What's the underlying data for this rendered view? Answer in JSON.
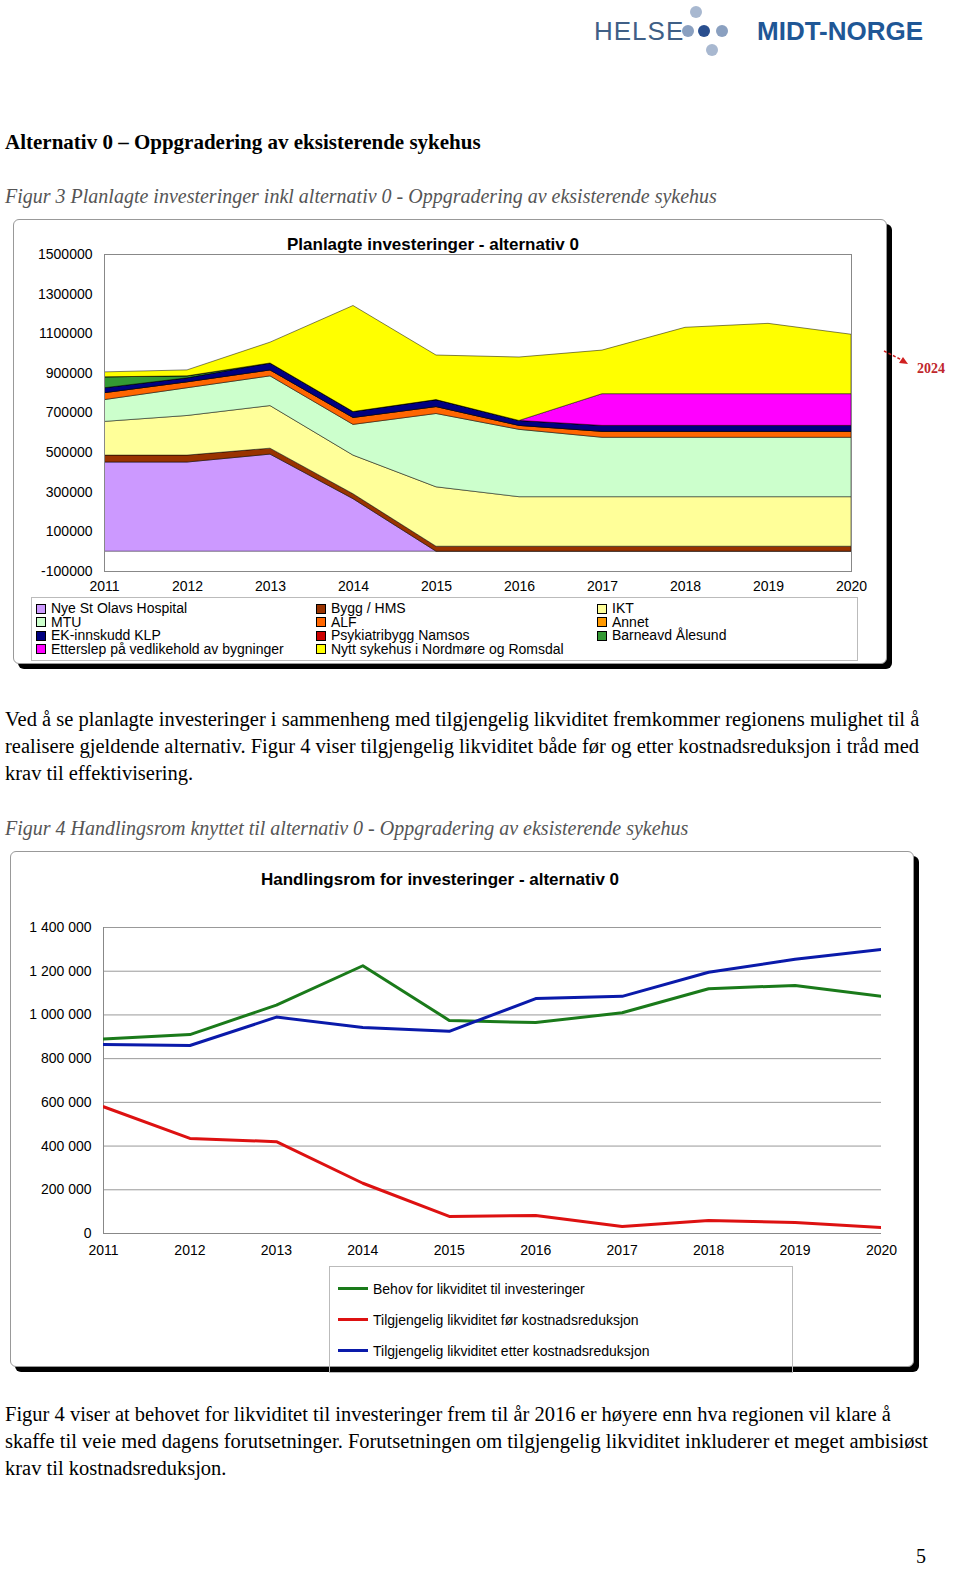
{
  "header": {
    "logo": [
      "HELSE",
      "MIDT-NORGE"
    ]
  },
  "heading": "Alternativ 0 – Oppgradering av eksisterende sykehus",
  "captions": [
    "Figur 3 Planlagte investeringer inkl alternativ 0 - Oppgradering av eksisterende sykehus",
    "Figur 4 Handlingsrom knyttet til alternativ 0 - Oppgradering av eksisterende sykehus"
  ],
  "paragraphs": [
    "Ved å se planlagte investeringer i sammenheng med tilgjengelig likviditet fremkommer regionens mulighet til å realisere gjeldende alternativ. Figur 4 viser tilgjengelig likviditet både før og etter kostnadsreduksjon i tråd med krav til effektivisering.",
    "Figur 4 viser at behovet for likviditet til investeringer frem til år 2016 er høyere enn hva regionen vil klare å skaffe til veie med dagens forutsetninger. Forutsetningen om tilgjengelig likviditet inkluderer et meget ambisiøst krav til kostnadsreduksjon."
  ],
  "page_number": 5,
  "chart_data": [
    {
      "type": "area",
      "title": "Planlagte investeringer - alternativ 0",
      "stacked": true,
      "grid": false,
      "legend": "bottom",
      "annotation": "2024",
      "x": [
        2011,
        2012,
        2013,
        2014,
        2015,
        2016,
        2017,
        2018,
        2019,
        2020
      ],
      "xlim": [
        2011,
        2020
      ],
      "xticks": [
        2011,
        2012,
        2013,
        2014,
        2015,
        2016,
        2017,
        2018,
        2019,
        2020
      ],
      "ylim": [
        -100000,
        1500000
      ],
      "yticks": [
        -100000,
        100000,
        300000,
        500000,
        700000,
        900000,
        1100000,
        1300000,
        1500000
      ],
      "series": [
        {
          "name": "Nye St Olavs Hospital",
          "color": "#cc99ff",
          "values": [
            450000,
            450000,
            490000,
            265000,
            0,
            0,
            0,
            0,
            0,
            0
          ]
        },
        {
          "name": "Bygg / HMS",
          "color": "#993300",
          "values": [
            35000,
            35000,
            30000,
            25000,
            25000,
            25000,
            25000,
            25000,
            25000,
            25000
          ]
        },
        {
          "name": "IKT",
          "color": "#ffff99",
          "values": [
            170000,
            200000,
            215000,
            195000,
            300000,
            250000,
            250000,
            250000,
            250000,
            250000
          ]
        },
        {
          "name": "MTU",
          "color": "#ccffcc",
          "values": [
            110000,
            140000,
            150000,
            155000,
            370000,
            340000,
            300000,
            300000,
            300000,
            300000
          ]
        },
        {
          "name": "ALF",
          "color": "#ff6600",
          "values": [
            35000,
            30000,
            30000,
            35000,
            35000,
            20000,
            30000,
            30000,
            30000,
            30000
          ]
        },
        {
          "name": "Annet",
          "color": "#ff9900",
          "values": [
            0,
            0,
            0,
            0,
            0,
            0,
            0,
            0,
            0,
            0
          ]
        },
        {
          "name": "EK-innskudd KLP",
          "color": "#000080",
          "values": [
            25000,
            20000,
            35000,
            30000,
            35000,
            25000,
            30000,
            30000,
            30000,
            30000
          ]
        },
        {
          "name": "Psykiatribygg Namsos",
          "color": "#cc0000",
          "values": [
            0,
            0,
            0,
            0,
            0,
            0,
            0,
            0,
            0,
            0
          ]
        },
        {
          "name": "Barneavd Ålesund",
          "color": "#339933",
          "values": [
            55000,
            10000,
            0,
            0,
            0,
            0,
            0,
            0,
            0,
            0
          ]
        },
        {
          "name": "Etterslep på vedlikehold av bygninger",
          "color": "#ff00ff",
          "values": [
            0,
            0,
            0,
            0,
            0,
            0,
            160000,
            160000,
            160000,
            160000
          ]
        },
        {
          "name": "Nytt sykehus i Nordmøre og Romsdal",
          "color": "#ffff00",
          "values": [
            25000,
            30000,
            105000,
            535000,
            225000,
            320000,
            220000,
            335000,
            355000,
            300000
          ]
        }
      ]
    },
    {
      "type": "line",
      "title": "Handlingsrom for investeringer - alternativ 0",
      "grid": true,
      "legend": "bottom",
      "x": [
        2011,
        2012,
        2013,
        2014,
        2015,
        2016,
        2017,
        2018,
        2019,
        2020
      ],
      "xlim": [
        2011,
        2020
      ],
      "xticks": [
        2011,
        2012,
        2013,
        2014,
        2015,
        2016,
        2017,
        2018,
        2019,
        2020
      ],
      "ylim": [
        0,
        1400000
      ],
      "yticks": [
        0,
        {
          "value": 200000,
          "label": "200 000"
        },
        {
          "value": 400000,
          "label": "400 000"
        },
        {
          "value": 600000,
          "label": "600 000"
        },
        {
          "value": 800000,
          "label": "800 000"
        },
        {
          "value": 1000000,
          "label": "1 000 000"
        },
        {
          "value": 1200000,
          "label": "1 200 000"
        },
        {
          "value": 1400000,
          "label": "1 400 000"
        }
      ],
      "series": [
        {
          "name": "Behov for likviditet til investeringer",
          "color": "#1a7a1a",
          "values": [
            890000,
            910000,
            1045000,
            1225000,
            975000,
            965000,
            1010000,
            1120000,
            1135000,
            1085000
          ]
        },
        {
          "name": "Tilgjengelig likviditet før kostnadsreduksjon",
          "color": "#dd1111",
          "values": [
            580000,
            435000,
            420000,
            230000,
            78000,
            82000,
            32000,
            60000,
            50000,
            27000
          ]
        },
        {
          "name": "Tilgjengelig likviditet etter kostnadsreduksjon",
          "color": "#0a1aaa",
          "values": [
            865000,
            860000,
            990000,
            942000,
            925000,
            1075000,
            1085000,
            1195000,
            1255000,
            1300000
          ]
        }
      ]
    }
  ]
}
